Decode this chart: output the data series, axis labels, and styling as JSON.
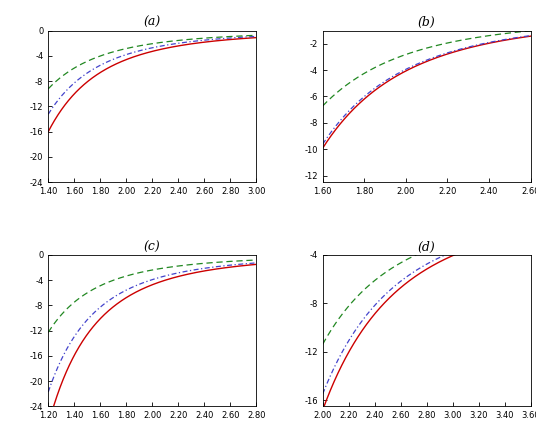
{
  "subplots": [
    {
      "label": "(a)",
      "xlim": [
        1.4,
        3.0
      ],
      "ylim": [
        -24,
        0
      ],
      "xticks": [
        1.4,
        1.6,
        1.8,
        2.0,
        2.2,
        2.4,
        2.6,
        2.8,
        3.0
      ],
      "yticks": [
        0,
        -4,
        -8,
        -12,
        -16,
        -20,
        -24
      ],
      "curves": [
        {
          "A": 6.5,
          "n": 4.5,
          "r0": 1.0,
          "color": "#cc0000",
          "ls": "solid",
          "lw": 1.0
        },
        {
          "A": 5.5,
          "n": 4.5,
          "r0": 1.0,
          "color": "#4444cc",
          "ls": "dashdot",
          "lw": 0.9
        },
        {
          "A": 3.8,
          "n": 4.2,
          "r0": 1.0,
          "color": "#008800",
          "ls": "dashed",
          "lw": 0.9
        }
      ],
      "x_start": 1.4
    },
    {
      "label": "(b)",
      "xlim": [
        1.6,
        2.6
      ],
      "ylim": [
        -12.5,
        -1.0
      ],
      "xticks": [
        1.6,
        1.8,
        2.0,
        2.2,
        2.4,
        2.6
      ],
      "yticks": [
        -2,
        -4,
        -6,
        -8,
        -10,
        -12
      ],
      "curves": [
        {
          "A": 5.5,
          "n": 4.5,
          "r0": 1.0,
          "color": "#cc0000",
          "ls": "solid",
          "lw": 1.0
        },
        {
          "A": 5.4,
          "n": 4.5,
          "r0": 1.0,
          "color": "#4444cc",
          "ls": "dashdot",
          "lw": 0.9
        },
        {
          "A": 3.5,
          "n": 4.2,
          "r0": 1.0,
          "color": "#008800",
          "ls": "dashed",
          "lw": 0.9
        }
      ],
      "x_start": 1.6
    },
    {
      "label": "(c)",
      "xlim": [
        1.2,
        2.8
      ],
      "ylim": [
        -24,
        0
      ],
      "xticks": [
        1.2,
        1.4,
        1.6,
        1.8,
        2.0,
        2.2,
        2.4,
        2.6,
        2.8
      ],
      "yticks": [
        0,
        -4,
        -8,
        -12,
        -16,
        -20,
        -24
      ],
      "curves": [
        {
          "A": 5.8,
          "n": 4.2,
          "r0": 1.0,
          "color": "#cc0000",
          "ls": "solid",
          "lw": 1.0
        },
        {
          "A": 4.8,
          "n": 4.1,
          "r0": 1.0,
          "color": "#4444cc",
          "ls": "dashdot",
          "lw": 0.9
        },
        {
          "A": 3.0,
          "n": 3.9,
          "r0": 1.0,
          "color": "#008800",
          "ls": "dashed",
          "lw": 0.9
        }
      ],
      "x_start": 1.2
    },
    {
      "label": "(d)",
      "xlim": [
        2.0,
        3.6
      ],
      "ylim": [
        -16,
        -4
      ],
      "xticks": [
        2.0,
        2.2,
        2.4,
        2.6,
        2.8,
        3.0,
        3.2,
        3.4,
        3.6
      ],
      "yticks": [
        -4,
        -8,
        -12,
        -16
      ],
      "curves": [
        {
          "A": 22.0,
          "n": 3.8,
          "r0": 1.0,
          "color": "#cc0000",
          "ls": "solid",
          "lw": 1.0
        },
        {
          "A": 20.0,
          "n": 3.8,
          "r0": 1.0,
          "color": "#4444cc",
          "ls": "dashdot",
          "lw": 0.9
        },
        {
          "A": 14.0,
          "n": 3.6,
          "r0": 1.0,
          "color": "#008800",
          "ls": "dashed",
          "lw": 0.9
        }
      ],
      "x_start": 2.0
    }
  ],
  "tick_labelsize": 6,
  "title_fontsize": 9,
  "background_color": "#ffffff"
}
